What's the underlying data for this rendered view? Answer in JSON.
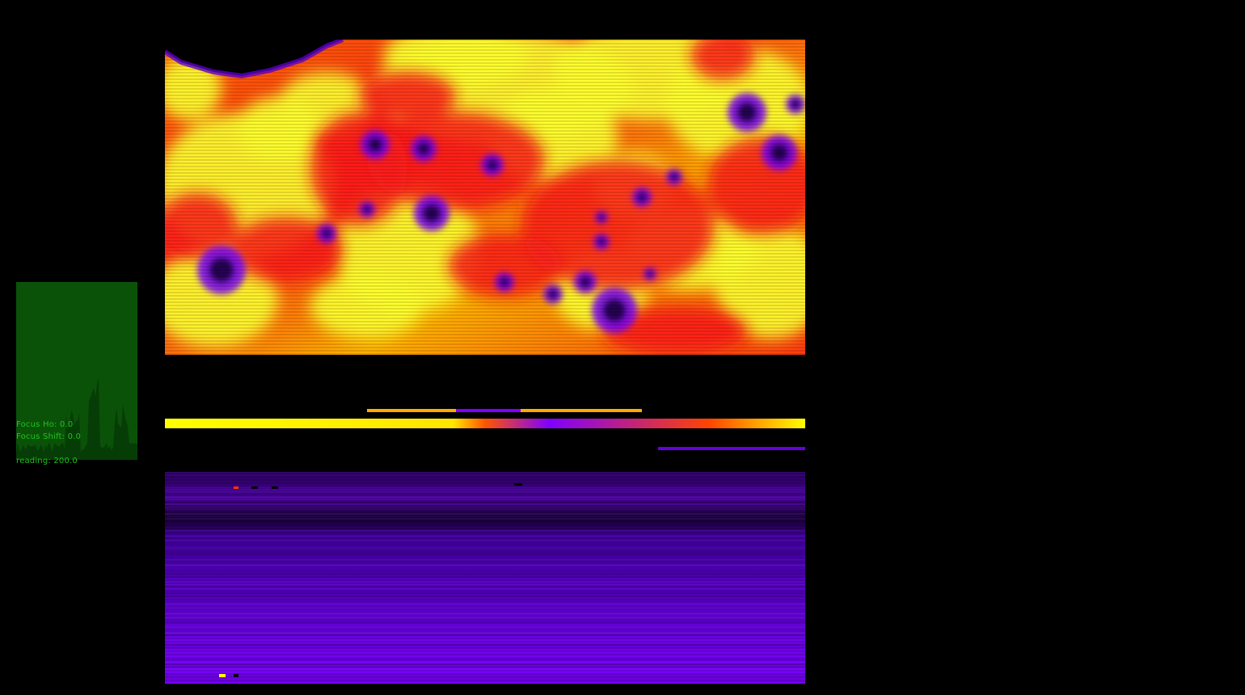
{
  "colors": {
    "background": "#000000",
    "hud_text": "#1fc21f",
    "histogram_fill": "#0b5209",
    "histogram_peaks": "#063d06",
    "palette": [
      "#000000",
      "#3b0080",
      "#7a00ff",
      "#ff1a1a",
      "#ff4500",
      "#ffa500",
      "#ffff00"
    ]
  },
  "hud": {
    "line1": "Focus Ho: 0.0",
    "line2": "Focus Shift: 0.0",
    "reading": "reading: 200.0"
  },
  "viewer": {
    "colormap": "gnuplot-heat",
    "icon": "image-view-icon"
  }
}
